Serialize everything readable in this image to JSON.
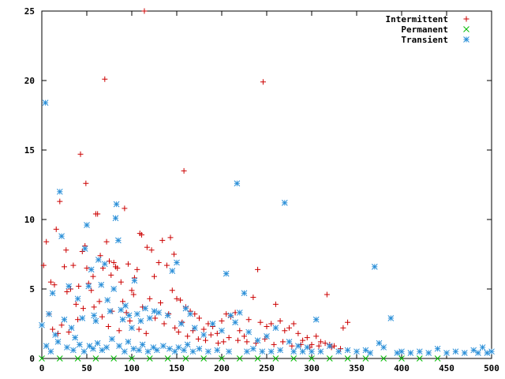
{
  "chart_data": {
    "type": "scatter",
    "xlim": [
      0,
      500
    ],
    "ylim": [
      0,
      25
    ],
    "x_ticks": [
      0,
      50,
      100,
      150,
      200,
      250,
      300,
      350,
      400,
      450,
      500
    ],
    "y_ticks": [
      0,
      5,
      10,
      15,
      20,
      25
    ],
    "grid": false,
    "legend_position": "top-right",
    "series": [
      {
        "name": "Intermittent",
        "marker": "plus",
        "color": "#cc0000",
        "points": [
          [
            2,
            6.7
          ],
          [
            5,
            8.4
          ],
          [
            10,
            5.5
          ],
          [
            14,
            5.3
          ],
          [
            16,
            9.3
          ],
          [
            20,
            11.3
          ],
          [
            25,
            6.6
          ],
          [
            27,
            7.8
          ],
          [
            32,
            5.0
          ],
          [
            35,
            6.7
          ],
          [
            41,
            5.2
          ],
          [
            43,
            14.7
          ],
          [
            45,
            7.7
          ],
          [
            48,
            8.1
          ],
          [
            49,
            12.6
          ],
          [
            50,
            6.5
          ],
          [
            52,
            5.4
          ],
          [
            57,
            5.9
          ],
          [
            60,
            10.4
          ],
          [
            62,
            10.4
          ],
          [
            65,
            7.4
          ],
          [
            68,
            6.5
          ],
          [
            70,
            20.1
          ],
          [
            72,
            8.4
          ],
          [
            75,
            7.0
          ],
          [
            77,
            6.0
          ],
          [
            80,
            6.9
          ],
          [
            82,
            6.6
          ],
          [
            84,
            6.5
          ],
          [
            88,
            5.5
          ],
          [
            92,
            10.8
          ],
          [
            96,
            6.8
          ],
          [
            100,
            4.9
          ],
          [
            103,
            5.8
          ],
          [
            106,
            6.4
          ],
          [
            109,
            9.0
          ],
          [
            111,
            8.9
          ],
          [
            114,
            25.0
          ],
          [
            117,
            8.0
          ],
          [
            122,
            7.8
          ],
          [
            125,
            5.9
          ],
          [
            130,
            6.9
          ],
          [
            134,
            8.5
          ],
          [
            139,
            6.7
          ],
          [
            143,
            8.7
          ],
          [
            145,
            4.9
          ],
          [
            147,
            7.5
          ],
          [
            150,
            4.3
          ],
          [
            154,
            4.2
          ],
          [
            158,
            13.5
          ],
          [
            160,
            3.7
          ],
          [
            165,
            3.4
          ],
          [
            170,
            3.2
          ],
          [
            175,
            2.9
          ],
          [
            180,
            2.1
          ],
          [
            185,
            2.5
          ],
          [
            190,
            2.3
          ],
          [
            195,
            1.8
          ],
          [
            200,
            2.7
          ],
          [
            205,
            3.2
          ],
          [
            210,
            3.0
          ],
          [
            215,
            3.3
          ],
          [
            220,
            2.0
          ],
          [
            225,
            1.6
          ],
          [
            230,
            2.8
          ],
          [
            235,
            4.4
          ],
          [
            240,
            6.4
          ],
          [
            243,
            2.6
          ],
          [
            246,
            19.9
          ],
          [
            250,
            2.3
          ],
          [
            255,
            2.5
          ],
          [
            260,
            3.9
          ],
          [
            265,
            2.7
          ],
          [
            270,
            2.0
          ],
          [
            275,
            2.2
          ],
          [
            280,
            2.5
          ],
          [
            285,
            1.8
          ],
          [
            290,
            1.3
          ],
          [
            295,
            1.5
          ],
          [
            300,
            1.0
          ],
          [
            305,
            1.6
          ],
          [
            310,
            1.2
          ],
          [
            315,
            1.1
          ],
          [
            317,
            4.6
          ],
          [
            320,
            1.0
          ],
          [
            325,
            0.9
          ],
          [
            335,
            2.2
          ],
          [
            340,
            2.6
          ],
          [
            8,
            3.2
          ],
          [
            12,
            2.1
          ],
          [
            18,
            1.8
          ],
          [
            22,
            2.4
          ],
          [
            28,
            4.8
          ],
          [
            30,
            1.9
          ],
          [
            38,
            3.9
          ],
          [
            40,
            2.8
          ],
          [
            46,
            3.6
          ],
          [
            55,
            4.9
          ],
          [
            58,
            3.7
          ],
          [
            64,
            4.1
          ],
          [
            67,
            3.0
          ],
          [
            74,
            2.3
          ],
          [
            78,
            3.4
          ],
          [
            86,
            2.0
          ],
          [
            90,
            4.1
          ],
          [
            94,
            3.3
          ],
          [
            98,
            2.7
          ],
          [
            102,
            4.6
          ],
          [
            108,
            2.1
          ],
          [
            112,
            3.7
          ],
          [
            116,
            1.8
          ],
          [
            120,
            4.3
          ],
          [
            126,
            2.9
          ],
          [
            132,
            4.0
          ],
          [
            136,
            2.5
          ],
          [
            141,
            3.2
          ],
          [
            148,
            2.2
          ],
          [
            152,
            1.9
          ],
          [
            156,
            2.6
          ],
          [
            162,
            1.6
          ],
          [
            168,
            2.0
          ],
          [
            174,
            1.4
          ],
          [
            182,
            1.3
          ],
          [
            188,
            1.7
          ],
          [
            196,
            1.1
          ],
          [
            202,
            1.2
          ],
          [
            208,
            1.5
          ],
          [
            218,
            1.3
          ],
          [
            228,
            1.2
          ],
          [
            238,
            1.1
          ],
          [
            248,
            1.4
          ],
          [
            258,
            1.0
          ],
          [
            268,
            1.2
          ],
          [
            278,
            0.9
          ],
          [
            288,
            1.0
          ],
          [
            298,
            0.8
          ],
          [
            308,
            0.9
          ],
          [
            322,
            0.8
          ],
          [
            332,
            0.7
          ]
        ]
      },
      {
        "name": "Permanent",
        "marker": "cross",
        "color": "#00bb00",
        "points": [
          [
            0,
            0.0
          ],
          [
            20,
            0.0
          ],
          [
            40,
            0.0
          ],
          [
            60,
            0.0
          ],
          [
            80,
            0.0
          ],
          [
            100,
            0.0
          ],
          [
            120,
            0.0
          ],
          [
            140,
            0.0
          ],
          [
            160,
            0.0
          ],
          [
            180,
            0.0
          ],
          [
            200,
            0.0
          ],
          [
            220,
            0.0
          ],
          [
            240,
            0.0
          ],
          [
            260,
            0.0
          ],
          [
            280,
            0.0
          ],
          [
            300,
            0.0
          ],
          [
            320,
            0.0
          ],
          [
            340,
            0.0
          ],
          [
            360,
            0.0
          ],
          [
            380,
            0.0
          ],
          [
            400,
            0.0
          ],
          [
            420,
            0.0
          ],
          [
            440,
            0.0
          ]
        ]
      },
      {
        "name": "Transient",
        "marker": "star",
        "color": "#2a8fd8",
        "points": [
          [
            0,
            2.4
          ],
          [
            4,
            18.4
          ],
          [
            8,
            3.2
          ],
          [
            12,
            4.7
          ],
          [
            15,
            1.7
          ],
          [
            20,
            12.0
          ],
          [
            22,
            8.8
          ],
          [
            25,
            2.8
          ],
          [
            30,
            5.2
          ],
          [
            33,
            2.2
          ],
          [
            37,
            1.5
          ],
          [
            40,
            4.3
          ],
          [
            45,
            2.9
          ],
          [
            48,
            7.9
          ],
          [
            50,
            9.6
          ],
          [
            52,
            5.2
          ],
          [
            55,
            6.4
          ],
          [
            58,
            3.1
          ],
          [
            60,
            2.7
          ],
          [
            63,
            7.1
          ],
          [
            66,
            5.3
          ],
          [
            70,
            6.8
          ],
          [
            73,
            4.2
          ],
          [
            76,
            3.4
          ],
          [
            80,
            5.0
          ],
          [
            82,
            10.1
          ],
          [
            83,
            11.1
          ],
          [
            85,
            8.5
          ],
          [
            88,
            3.5
          ],
          [
            90,
            2.8
          ],
          [
            93,
            3.8
          ],
          [
            97,
            3.1
          ],
          [
            100,
            2.2
          ],
          [
            103,
            5.6
          ],
          [
            106,
            3.2
          ],
          [
            110,
            2.7
          ],
          [
            115,
            3.6
          ],
          [
            120,
            2.9
          ],
          [
            125,
            3.4
          ],
          [
            130,
            3.3
          ],
          [
            140,
            3.1
          ],
          [
            145,
            6.3
          ],
          [
            150,
            6.9
          ],
          [
            155,
            2.5
          ],
          [
            160,
            3.6
          ],
          [
            165,
            3.2
          ],
          [
            170,
            2.2
          ],
          [
            180,
            1.7
          ],
          [
            190,
            2.5
          ],
          [
            200,
            2.0
          ],
          [
            205,
            6.1
          ],
          [
            210,
            3.1
          ],
          [
            215,
            2.6
          ],
          [
            217,
            12.6
          ],
          [
            220,
            3.3
          ],
          [
            225,
            4.7
          ],
          [
            230,
            1.9
          ],
          [
            240,
            1.3
          ],
          [
            250,
            1.6
          ],
          [
            260,
            2.2
          ],
          [
            270,
            11.2
          ],
          [
            275,
            1.2
          ],
          [
            285,
            0.9
          ],
          [
            295,
            0.8
          ],
          [
            305,
            2.8
          ],
          [
            320,
            0.9
          ],
          [
            340,
            0.6
          ],
          [
            360,
            0.6
          ],
          [
            370,
            6.6
          ],
          [
            375,
            1.1
          ],
          [
            380,
            0.8
          ],
          [
            388,
            2.9
          ],
          [
            400,
            0.5
          ],
          [
            420,
            0.5
          ],
          [
            440,
            0.7
          ],
          [
            460,
            0.5
          ],
          [
            480,
            0.6
          ],
          [
            490,
            0.8
          ],
          [
            500,
            0.5
          ],
          [
            5,
            0.9
          ],
          [
            10,
            0.5
          ],
          [
            18,
            1.2
          ],
          [
            28,
            0.8
          ],
          [
            35,
            0.6
          ],
          [
            42,
            1.0
          ],
          [
            47,
            0.5
          ],
          [
            53,
            0.9
          ],
          [
            57,
            0.7
          ],
          [
            62,
            1.1
          ],
          [
            67,
            0.6
          ],
          [
            72,
            0.8
          ],
          [
            78,
            1.4
          ],
          [
            86,
            0.9
          ],
          [
            92,
            0.5
          ],
          [
            96,
            1.2
          ],
          [
            102,
            0.7
          ],
          [
            108,
            0.6
          ],
          [
            112,
            1.0
          ],
          [
            118,
            0.5
          ],
          [
            124,
            0.8
          ],
          [
            128,
            0.6
          ],
          [
            135,
            0.9
          ],
          [
            142,
            0.7
          ],
          [
            148,
            0.5
          ],
          [
            152,
            0.8
          ],
          [
            158,
            0.6
          ],
          [
            162,
            1.0
          ],
          [
            168,
            0.5
          ],
          [
            175,
            0.7
          ],
          [
            185,
            0.5
          ],
          [
            195,
            0.6
          ],
          [
            208,
            0.5
          ],
          [
            228,
            0.5
          ],
          [
            235,
            0.7
          ],
          [
            245,
            0.5
          ],
          [
            255,
            0.5
          ],
          [
            265,
            0.6
          ],
          [
            280,
            0.5
          ],
          [
            290,
            0.5
          ],
          [
            300,
            0.5
          ],
          [
            310,
            0.5
          ],
          [
            330,
            0.5
          ],
          [
            350,
            0.5
          ],
          [
            365,
            0.4
          ],
          [
            395,
            0.4
          ],
          [
            410,
            0.4
          ],
          [
            430,
            0.4
          ],
          [
            450,
            0.4
          ],
          [
            470,
            0.4
          ],
          [
            485,
            0.4
          ],
          [
            495,
            0.4
          ]
        ]
      }
    ]
  }
}
